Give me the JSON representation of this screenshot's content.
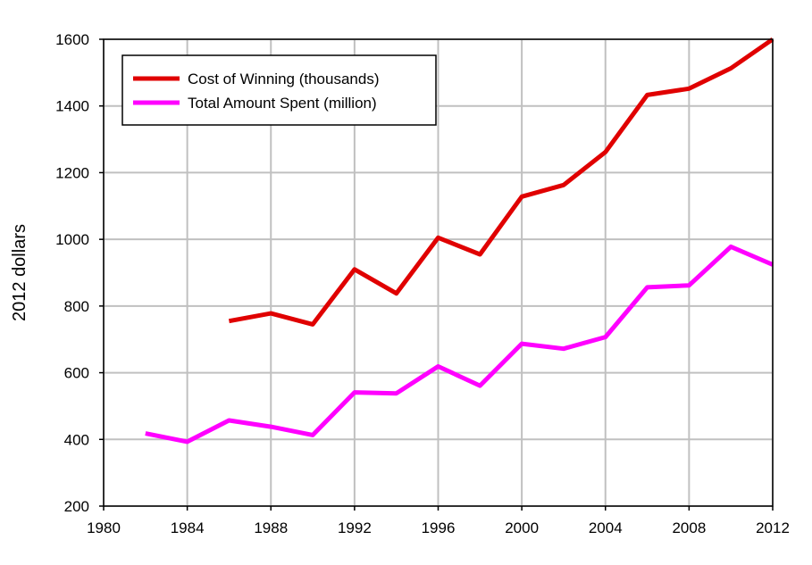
{
  "chart_data": {
    "type": "line",
    "title": "",
    "xlabel": "",
    "ylabel": "2012 dollars",
    "xlim": [
      1980,
      2012
    ],
    "ylim": [
      200,
      1600
    ],
    "xticks": [
      1980,
      1984,
      1988,
      1992,
      1996,
      2000,
      2004,
      2008,
      2012
    ],
    "yticks": [
      200,
      400,
      600,
      800,
      1000,
      1200,
      1400,
      1600
    ],
    "grid": true,
    "legend_position": "top-left",
    "series": [
      {
        "name": "Cost of Winning (thousands)",
        "color": "#e00000",
        "x": [
          1986,
          1988,
          1990,
          1992,
          1994,
          1996,
          1998,
          2000,
          2002,
          2004,
          2006,
          2008,
          2010,
          2012
        ],
        "y": [
          755,
          778,
          745,
          910,
          838,
          1005,
          955,
          1128,
          1163,
          1262,
          1433,
          1452,
          1513,
          1600
        ]
      },
      {
        "name": "Total Amount Spent (million)",
        "color": "#ff00ff",
        "x": [
          1982,
          1984,
          1986,
          1988,
          1990,
          1992,
          1994,
          1996,
          1998,
          2000,
          2002,
          2004,
          2006,
          2008,
          2010,
          2012
        ],
        "y": [
          418,
          393,
          457,
          438,
          413,
          541,
          538,
          619,
          561,
          687,
          672,
          707,
          856,
          862,
          978,
          924
        ]
      }
    ]
  }
}
